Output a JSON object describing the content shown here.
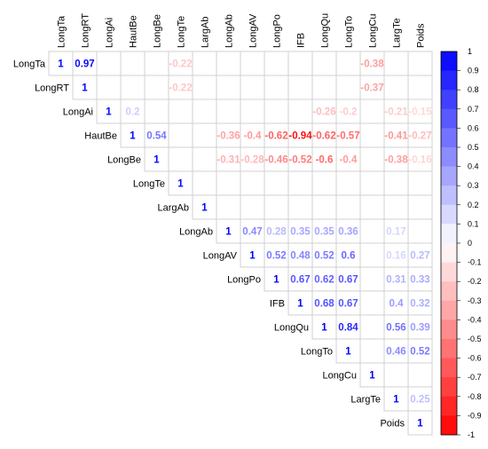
{
  "chart_data": {
    "type": "heatmap",
    "variables": [
      "LongTa",
      "LongRT",
      "LongAi",
      "HautBe",
      "LongBe",
      "LongTe",
      "LargAb",
      "LongAb",
      "LongAV",
      "LongPo",
      "IFB",
      "LongQu",
      "LongTo",
      "LongCu",
      "LargTe",
      "Poids"
    ],
    "column_labels": [
      "LongTa",
      "LongRT",
      "LongAi",
      "HautBe",
      "LongBe",
      "LongTe",
      "LargAb",
      "LongAb",
      "LongAV",
      "LongPo",
      "IFB",
      "LongQu",
      "LongTo",
      "LongCu",
      "LargTe",
      "Poids"
    ],
    "row_labels": [
      "LongTa",
      "LongRT",
      "LongAi",
      "HautBe",
      "LongBe",
      "LongTe",
      "LargAb",
      "LongAb",
      "LongAV",
      "LongPo",
      "IFB",
      "LongQu",
      "LongTo",
      "LongCu",
      "LargTe",
      "Poids"
    ],
    "matrix_type": "upper",
    "cells": [
      {
        "row": 0,
        "col": 0,
        "value": 1
      },
      {
        "row": 0,
        "col": 1,
        "value": 0.97
      },
      {
        "row": 0,
        "col": 5,
        "value": -0.22
      },
      {
        "row": 0,
        "col": 13,
        "value": -0.38
      },
      {
        "row": 1,
        "col": 1,
        "value": 1
      },
      {
        "row": 1,
        "col": 5,
        "value": -0.22
      },
      {
        "row": 1,
        "col": 13,
        "value": -0.37
      },
      {
        "row": 2,
        "col": 2,
        "value": 1
      },
      {
        "row": 2,
        "col": 3,
        "value": 0.2
      },
      {
        "row": 2,
        "col": 11,
        "value": -0.26
      },
      {
        "row": 2,
        "col": 12,
        "value": -0.2
      },
      {
        "row": 2,
        "col": 14,
        "value": -0.21
      },
      {
        "row": 2,
        "col": 15,
        "value": -0.15
      },
      {
        "row": 3,
        "col": 3,
        "value": 1
      },
      {
        "row": 3,
        "col": 4,
        "value": 0.54
      },
      {
        "row": 3,
        "col": 7,
        "value": -0.36
      },
      {
        "row": 3,
        "col": 8,
        "value": -0.4
      },
      {
        "row": 3,
        "col": 9,
        "value": -0.62
      },
      {
        "row": 3,
        "col": 10,
        "value": -0.94
      },
      {
        "row": 3,
        "col": 11,
        "value": -0.62
      },
      {
        "row": 3,
        "col": 12,
        "value": -0.57
      },
      {
        "row": 3,
        "col": 14,
        "value": -0.41
      },
      {
        "row": 3,
        "col": 15,
        "value": -0.27
      },
      {
        "row": 4,
        "col": 4,
        "value": 1
      },
      {
        "row": 4,
        "col": 7,
        "value": -0.31
      },
      {
        "row": 4,
        "col": 8,
        "value": -0.28
      },
      {
        "row": 4,
        "col": 9,
        "value": -0.46
      },
      {
        "row": 4,
        "col": 10,
        "value": -0.52
      },
      {
        "row": 4,
        "col": 11,
        "value": -0.6
      },
      {
        "row": 4,
        "col": 12,
        "value": -0.4
      },
      {
        "row": 4,
        "col": 14,
        "value": -0.38
      },
      {
        "row": 4,
        "col": 15,
        "value": -0.16
      },
      {
        "row": 5,
        "col": 5,
        "value": 1
      },
      {
        "row": 6,
        "col": 6,
        "value": 1
      },
      {
        "row": 7,
        "col": 7,
        "value": 1
      },
      {
        "row": 7,
        "col": 8,
        "value": 0.47
      },
      {
        "row": 7,
        "col": 9,
        "value": 0.28
      },
      {
        "row": 7,
        "col": 10,
        "value": 0.35
      },
      {
        "row": 7,
        "col": 11,
        "value": 0.35
      },
      {
        "row": 7,
        "col": 12,
        "value": 0.36
      },
      {
        "row": 7,
        "col": 14,
        "value": 0.17
      },
      {
        "row": 8,
        "col": 8,
        "value": 1
      },
      {
        "row": 8,
        "col": 9,
        "value": 0.52
      },
      {
        "row": 8,
        "col": 10,
        "value": 0.48
      },
      {
        "row": 8,
        "col": 11,
        "value": 0.52
      },
      {
        "row": 8,
        "col": 12,
        "value": 0.6
      },
      {
        "row": 8,
        "col": 14,
        "value": 0.16
      },
      {
        "row": 8,
        "col": 15,
        "value": 0.27
      },
      {
        "row": 9,
        "col": 9,
        "value": 1
      },
      {
        "row": 9,
        "col": 10,
        "value": 0.67
      },
      {
        "row": 9,
        "col": 11,
        "value": 0.62
      },
      {
        "row": 9,
        "col": 12,
        "value": 0.67
      },
      {
        "row": 9,
        "col": 14,
        "value": 0.31
      },
      {
        "row": 9,
        "col": 15,
        "value": 0.33
      },
      {
        "row": 10,
        "col": 10,
        "value": 1
      },
      {
        "row": 10,
        "col": 11,
        "value": 0.68
      },
      {
        "row": 10,
        "col": 12,
        "value": 0.67
      },
      {
        "row": 10,
        "col": 14,
        "value": 0.4
      },
      {
        "row": 10,
        "col": 15,
        "value": 0.32
      },
      {
        "row": 11,
        "col": 11,
        "value": 1
      },
      {
        "row": 11,
        "col": 12,
        "value": 0.84
      },
      {
        "row": 11,
        "col": 14,
        "value": 0.56
      },
      {
        "row": 11,
        "col": 15,
        "value": 0.39
      },
      {
        "row": 12,
        "col": 12,
        "value": 1
      },
      {
        "row": 12,
        "col": 14,
        "value": 0.46
      },
      {
        "row": 12,
        "col": 15,
        "value": 0.52
      },
      {
        "row": 13,
        "col": 13,
        "value": 1
      },
      {
        "row": 14,
        "col": 14,
        "value": 1
      },
      {
        "row": 14,
        "col": 15,
        "value": 0.25
      },
      {
        "row": 15,
        "col": 15,
        "value": 1
      }
    ],
    "colorbar": {
      "ticks": [
        0.9,
        0.8,
        0.7,
        0.6,
        0.5,
        0.4,
        0.3,
        0.2,
        0.1,
        0,
        -0.1,
        -0.2,
        -0.3,
        -0.4,
        -0.5,
        -0.6,
        -0.7,
        -0.8,
        -0.9,
        -1
      ],
      "tick_labels": [
        "0.9",
        "0.8",
        "0.7",
        "0.6",
        "0.5",
        "0.4",
        "0.3",
        "0.2",
        "0.1",
        "0",
        "-0.1",
        "-0.2",
        "-0.3",
        "-0.4",
        "-0.5",
        "-0.6",
        "-0.7",
        "-0.8",
        "-0.9",
        "-1"
      ],
      "top_label": "1",
      "range": [
        -1,
        1
      ],
      "negative_color": "#ff0000",
      "positive_color": "#0000ff",
      "zero_color": "#ffffff"
    },
    "grid": true,
    "cell_border_color": "#d0d0d0"
  }
}
